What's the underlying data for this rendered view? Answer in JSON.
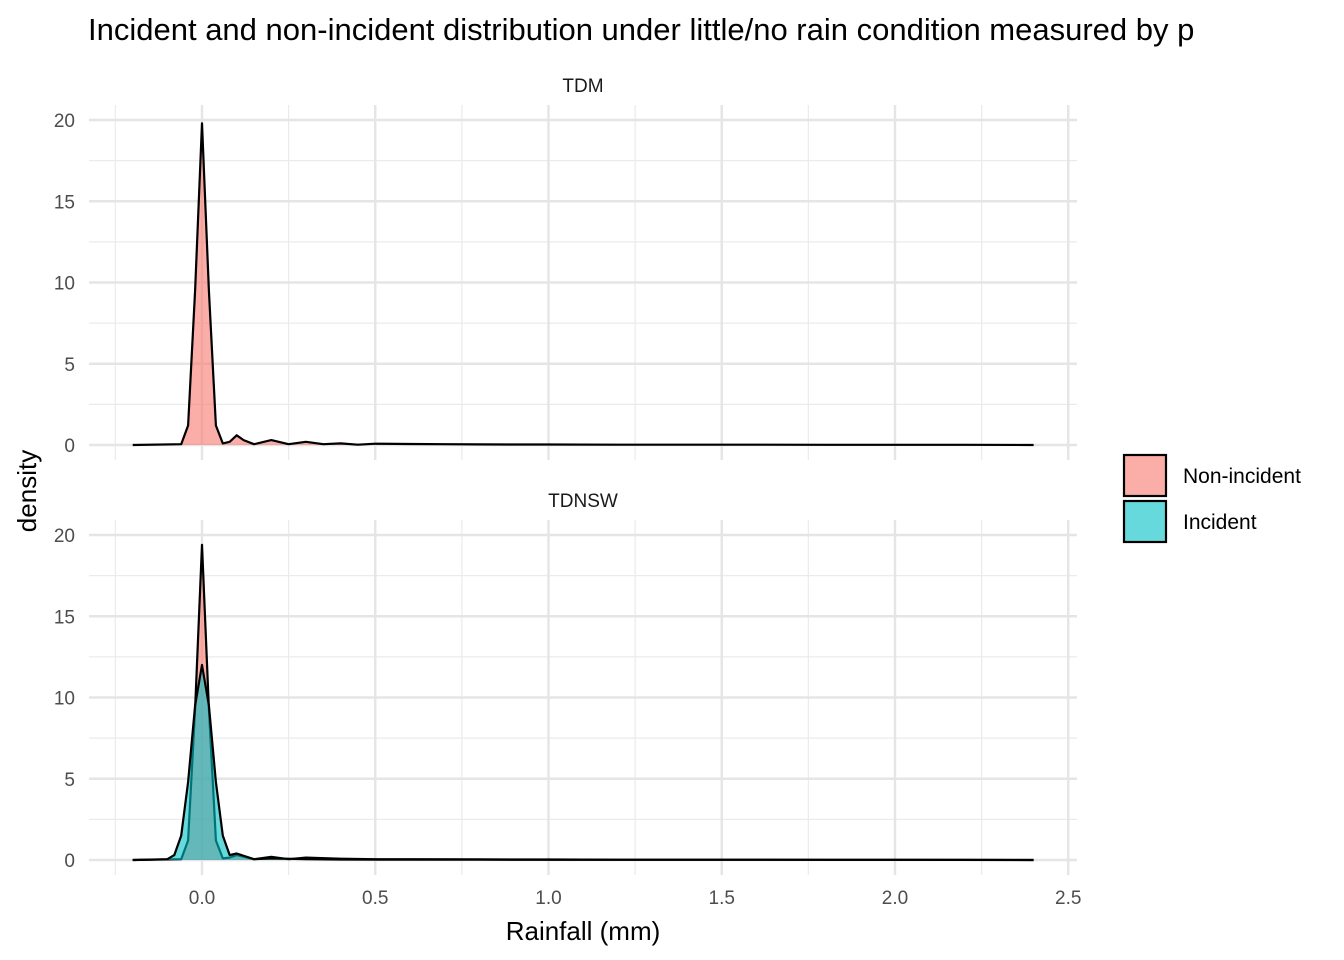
{
  "chart_data": {
    "type": "area",
    "title": "Incident and non-incident distribution under little/no rain condition measured by p",
    "xlabel": "Rainfall (mm)",
    "ylabel": "density",
    "xlim": [
      -0.25,
      2.5
    ],
    "ylim": [
      0,
      20
    ],
    "x_ticks": [
      "0.0",
      "0.5",
      "1.0",
      "1.5",
      "2.0",
      "2.5"
    ],
    "x_tick_values": [
      0,
      0.5,
      1,
      1.5,
      2,
      2.5
    ],
    "y_ticks": [
      "0",
      "5",
      "10",
      "15",
      "20"
    ],
    "y_tick_values": [
      0,
      5,
      10,
      15,
      20
    ],
    "grid": true,
    "legend_position": "right",
    "legend": [
      {
        "label": "Non-incident",
        "color": "#F8766D"
      },
      {
        "label": "Incident",
        "color": "#00BFC4"
      }
    ],
    "panels": [
      {
        "strip": "TDM",
        "series": [
          {
            "name": "Non-incident",
            "color": "#F8766D",
            "x": [
              -0.2,
              -0.06,
              -0.04,
              -0.02,
              0,
              0.02,
              0.04,
              0.06,
              0.08,
              0.1,
              0.12,
              0.15,
              0.2,
              0.25,
              0.3,
              0.35,
              0.4,
              0.45,
              0.5,
              0.6,
              0.7,
              0.8,
              0.9,
              1.0,
              1.2,
              1.4,
              1.6,
              1.8,
              2.0,
              2.2,
              2.4
            ],
            "y": [
              0,
              0.05,
              1.2,
              9.5,
              19.8,
              9.5,
              1.2,
              0.1,
              0.2,
              0.6,
              0.3,
              0.05,
              0.3,
              0.05,
              0.2,
              0.05,
              0.1,
              0.02,
              0.08,
              0.06,
              0.05,
              0.04,
              0.03,
              0.03,
              0.02,
              0.02,
              0.02,
              0.01,
              0.01,
              0.01,
              0
            ]
          }
        ]
      },
      {
        "strip": "TDNSW",
        "series": [
          {
            "name": "Non-incident",
            "color": "#F8766D",
            "x": [
              -0.2,
              -0.06,
              -0.04,
              -0.02,
              0,
              0.02,
              0.04,
              0.06,
              0.08,
              0.1,
              0.15,
              0.2,
              0.25,
              0.3,
              0.4,
              0.5,
              0.6,
              0.8,
              1.0,
              1.2,
              1.4,
              1.6,
              1.8,
              2.0,
              2.2,
              2.4
            ],
            "y": [
              0,
              0.05,
              1.2,
              9.3,
              19.4,
              9.3,
              1.2,
              0.1,
              0.15,
              0.3,
              0.05,
              0.2,
              0.05,
              0.15,
              0.08,
              0.05,
              0.05,
              0.04,
              0.03,
              0.02,
              0.02,
              0.02,
              0.01,
              0.01,
              0.01,
              0
            ]
          },
          {
            "name": "Incident",
            "color": "#00BFC4",
            "x": [
              -0.2,
              -0.1,
              -0.08,
              -0.06,
              -0.04,
              -0.02,
              0,
              0.02,
              0.04,
              0.06,
              0.08,
              0.1,
              0.15,
              0.2,
              0.3,
              0.4,
              0.6,
              0.8,
              1.0,
              1.5,
              2.0,
              2.4
            ],
            "y": [
              0,
              0.05,
              0.3,
              1.5,
              4.8,
              9.5,
              12.0,
              9.5,
              4.8,
              1.5,
              0.3,
              0.4,
              0.05,
              0.1,
              0.05,
              0.03,
              0.02,
              0.02,
              0.01,
              0.01,
              0.01,
              0
            ]
          }
        ]
      }
    ]
  }
}
